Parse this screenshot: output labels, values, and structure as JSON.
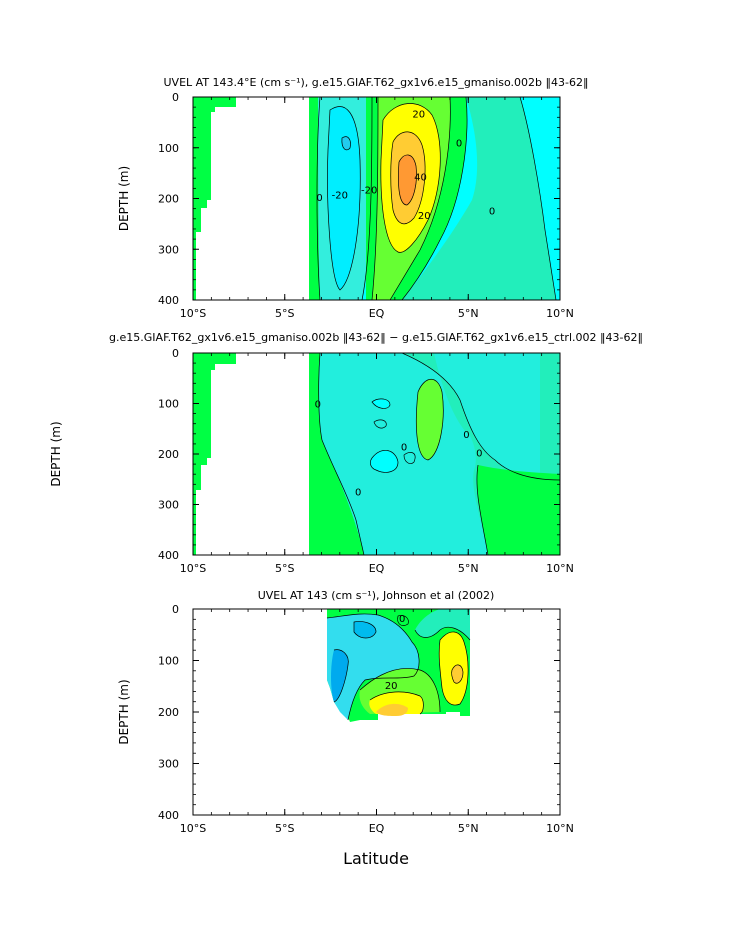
{
  "colors": {
    "cyan": "#00ffff",
    "lightcyan": "#33eedd",
    "teal": "#22eebb",
    "green": "#00ff44",
    "lightgreen": "#66ff33",
    "yellow": "#ffff00",
    "orange": "#ffcc33",
    "darkorange": "#ff9933",
    "blue": "#00aaee",
    "white": "#ffffff"
  },
  "chart_data": [
    {
      "type": "contour",
      "title": "UVEL AT 143.4°E (cm s⁻¹), g.e15.GIAF.T62_gx1v6.e15_gmaniso.002b ‖43-62‖",
      "xlabel": "",
      "ylabel": "DEPTH (m)",
      "xlim": [
        -10,
        10
      ],
      "ylim": [
        400,
        0
      ],
      "x_ticks": [
        "10°S",
        "5°S",
        "EQ",
        "5°N",
        "10°N"
      ],
      "y_ticks": [
        "0",
        "100",
        "200",
        "300",
        "400"
      ],
      "contour_labels": [
        "0",
        "20",
        "0",
        "20",
        "40",
        "20",
        "0",
        "0",
        "-20"
      ],
      "annotations": [
        {
          "text": "-20",
          "x": -2.0,
          "y": 200
        },
        {
          "text": "0",
          "x": -3.1,
          "y": 205
        },
        {
          "text": "-20",
          "x": -0.4,
          "y": 190
        },
        {
          "text": "40",
          "x": 2.4,
          "y": 165
        },
        {
          "text": "20",
          "x": 2.3,
          "y": 40
        },
        {
          "text": "20",
          "x": 2.6,
          "y": 240
        },
        {
          "text": "0",
          "x": 4.5,
          "y": 98
        },
        {
          "text": "0",
          "x": 6.3,
          "y": 232
        }
      ]
    },
    {
      "type": "contour",
      "title": "g.e15.GIAF.T62_gx1v6.e15_gmaniso.002b ‖43-62‖ − g.e15.GIAF.T62_gx1v6.e15_ctrl.002 ‖43-62‖",
      "xlabel": "",
      "ylabel": "DEPTH (m)",
      "xlim": [
        -10,
        10
      ],
      "ylim": [
        400,
        0
      ],
      "x_ticks": [
        "10°S",
        "5°S",
        "EQ",
        "5°N",
        "10°N"
      ],
      "y_ticks": [
        "0",
        "100",
        "200",
        "300",
        "400"
      ],
      "annotations": [
        {
          "text": "0",
          "x": -3.2,
          "y": 108
        },
        {
          "text": "0",
          "x": 1.5,
          "y": 193
        },
        {
          "text": "0",
          "x": 4.9,
          "y": 168
        },
        {
          "text": "0",
          "x": 5.6,
          "y": 205
        },
        {
          "text": "0",
          "x": -1.0,
          "y": 282
        }
      ]
    },
    {
      "type": "contour",
      "title": "UVEL AT 143 (cm s⁻¹), Johnson et al (2002)",
      "xlabel": "Latitude",
      "ylabel": "DEPTH (m)",
      "xlim": [
        -10,
        10
      ],
      "ylim": [
        400,
        0
      ],
      "x_ticks": [
        "10°S",
        "5°S",
        "EQ",
        "5°N",
        "10°N"
      ],
      "y_ticks": [
        "0",
        "100",
        "200",
        "300",
        "400"
      ],
      "annotations": [
        {
          "text": "0",
          "x": 1.4,
          "y": 25
        },
        {
          "text": "20",
          "x": 0.8,
          "y": 155
        }
      ]
    }
  ]
}
